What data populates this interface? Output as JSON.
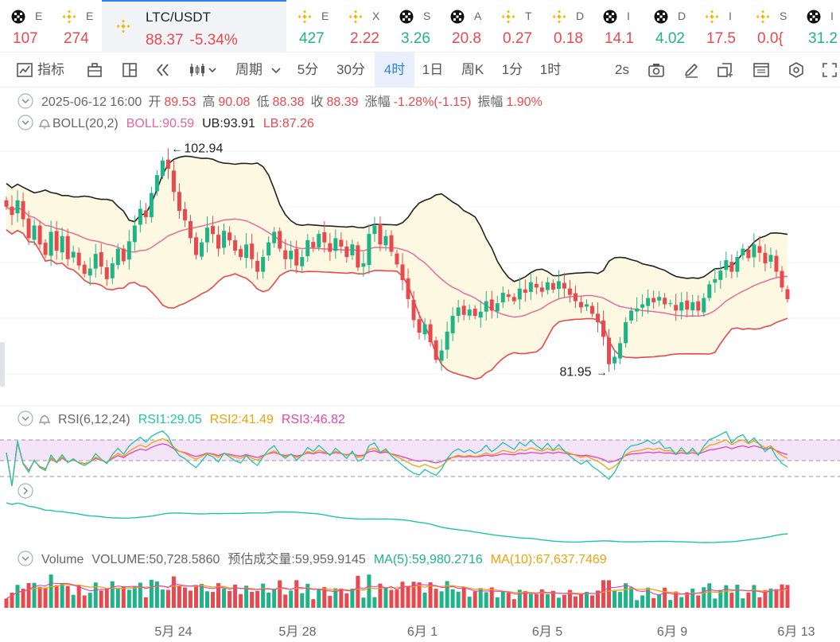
{
  "ticker": [
    {
      "name": "E",
      "price": "107",
      "dir": "dn",
      "icon": "okx-icon"
    },
    {
      "name": "E",
      "price": "274",
      "dir": "dn",
      "icon": "bnb-icon"
    },
    {
      "name": "LTC/USDT",
      "price": "88.37",
      "change": "-5.34%",
      "dir": "dn",
      "icon": "bnb-icon",
      "active": true
    },
    {
      "name": "E",
      "price": "427",
      "dir": "up",
      "icon": "bnb-icon"
    },
    {
      "name": "X",
      "price": "2.22",
      "dir": "dn",
      "icon": "bnb-icon"
    },
    {
      "name": "S",
      "price": "3.26",
      "dir": "up",
      "icon": "okx-icon"
    },
    {
      "name": "A",
      "price": "20.8",
      "dir": "dn",
      "icon": "okx-icon"
    },
    {
      "name": "T",
      "price": "0.27",
      "dir": "dn",
      "icon": "bnb-icon"
    },
    {
      "name": "D",
      "price": "0.18",
      "dir": "dn",
      "icon": "bnb-icon"
    },
    {
      "name": "I",
      "price": "14.1",
      "dir": "dn",
      "icon": "okx-icon"
    },
    {
      "name": "D",
      "price": "4.02",
      "dir": "up",
      "icon": "okx-icon"
    },
    {
      "name": "I",
      "price": "17.5",
      "dir": "dn",
      "icon": "bnb-icon"
    },
    {
      "name": "S",
      "price": "0.0{",
      "dir": "dn",
      "icon": "bnb-icon"
    },
    {
      "name": "I",
      "price": "31.2",
      "dir": "up",
      "icon": "okx-icon"
    }
  ],
  "toolbar": {
    "indicators": "指标",
    "period": "周期",
    "intervals": [
      "5分",
      "30分",
      "4时",
      "1日",
      "周K",
      "1分",
      "1时"
    ],
    "selected_interval": "4时",
    "refresh": "2s"
  },
  "ohlc": {
    "date": "2025-06-12 16:00",
    "open_label": "开",
    "open": "89.53",
    "high_label": "高",
    "high": "90.08",
    "low_label": "低",
    "low": "88.38",
    "close_label": "收",
    "close": "88.39",
    "change_label": "涨幅",
    "change": "-1.28%(-1.15)",
    "amp_label": "振幅",
    "amp": "1.90%"
  },
  "boll": {
    "name": "BOLL(20,2)",
    "mid": "BOLL:90.59",
    "ub": "UB:93.91",
    "lb": "LB:87.26"
  },
  "rsi": {
    "name": "RSI(6,12,24)",
    "rsi1": "RSI1:29.05",
    "rsi2": "RSI2:41.49",
    "rsi3": "RSI3:46.82"
  },
  "volume": {
    "name": "Volume",
    "value": "VOLUME:50,728.5860",
    "est_label": "预估成交量:",
    "est": "59,959.9145",
    "ma5": "MA(5):59,980.2716",
    "ma10": "MA(10):67,637.7469"
  },
  "colors": {
    "up": "#1fb487",
    "down": "#e8494f",
    "accent": "#2f80ed",
    "boll_mid": "#e8649a",
    "boll_ub": "#222222",
    "boll_lb": "#e8494f",
    "rsi1": "#20c4a8",
    "rsi2": "#f0a20a",
    "rsi3": "#e044b4",
    "band_fill": "#fdf8e1"
  },
  "chart_data": {
    "type": "candlestick",
    "symbol": "LTC/USDT",
    "interval": "4时",
    "x_ticks": [
      "5月 24",
      "5月 28",
      "6月 1",
      "6月 5",
      "6月 9",
      "6月 13"
    ],
    "annotations": [
      {
        "label": "102.94",
        "kind": "max"
      },
      {
        "label": "81.95",
        "kind": "min"
      }
    ],
    "ylim": [
      79,
      104
    ],
    "close": [
      97.2,
      96.4,
      97.8,
      96.0,
      94.2,
      95.4,
      93.6,
      92.6,
      94.8,
      93.0,
      94.4,
      92.2,
      92.9,
      91.6,
      90.8,
      91.3,
      92.7,
      91.5,
      90.3,
      91.8,
      93.2,
      92.0,
      93.9,
      95.4,
      97.0,
      96.2,
      98.5,
      100.2,
      101.6,
      100.8,
      98.6,
      96.8,
      95.9,
      94.2,
      92.6,
      93.8,
      95.2,
      94.6,
      93.2,
      94.9,
      94.0,
      93.0,
      92.4,
      93.6,
      92.2,
      91.0,
      92.4,
      93.8,
      94.8,
      93.2,
      92.2,
      93.0,
      91.6,
      92.4,
      94.0,
      93.3,
      94.6,
      93.8,
      92.9,
      94.2,
      93.4,
      92.4,
      93.6,
      91.4,
      91.8,
      94.6,
      95.4,
      93.6,
      94.4,
      92.9,
      91.7,
      90.2,
      88.4,
      86.4,
      85.2,
      86.0,
      84.3,
      82.6,
      83.5,
      85.3,
      86.8,
      87.6,
      86.9,
      87.4,
      86.8,
      87.2,
      88.2,
      87.3,
      88.0,
      89.0,
      88.6,
      88.2,
      89.4,
      89.0,
      90.0,
      89.5,
      89.1,
      90.0,
      89.3,
      90.1,
      89.4,
      88.8,
      88.2,
      87.6,
      87.9,
      87.0,
      86.2,
      84.8,
      82.2,
      82.9,
      84.2,
      86.2,
      87.3,
      87.5,
      87.9,
      88.5,
      88.1,
      88.6,
      87.9,
      88.0,
      87.3,
      88.1,
      87.4,
      88.1,
      87.3,
      88.5,
      89.8,
      90.3,
      91.1,
      92.1,
      91.0,
      92.4,
      93.2,
      92.3,
      93.6,
      92.8,
      91.8,
      92.6,
      91.0,
      89.5,
      88.39
    ]
  }
}
